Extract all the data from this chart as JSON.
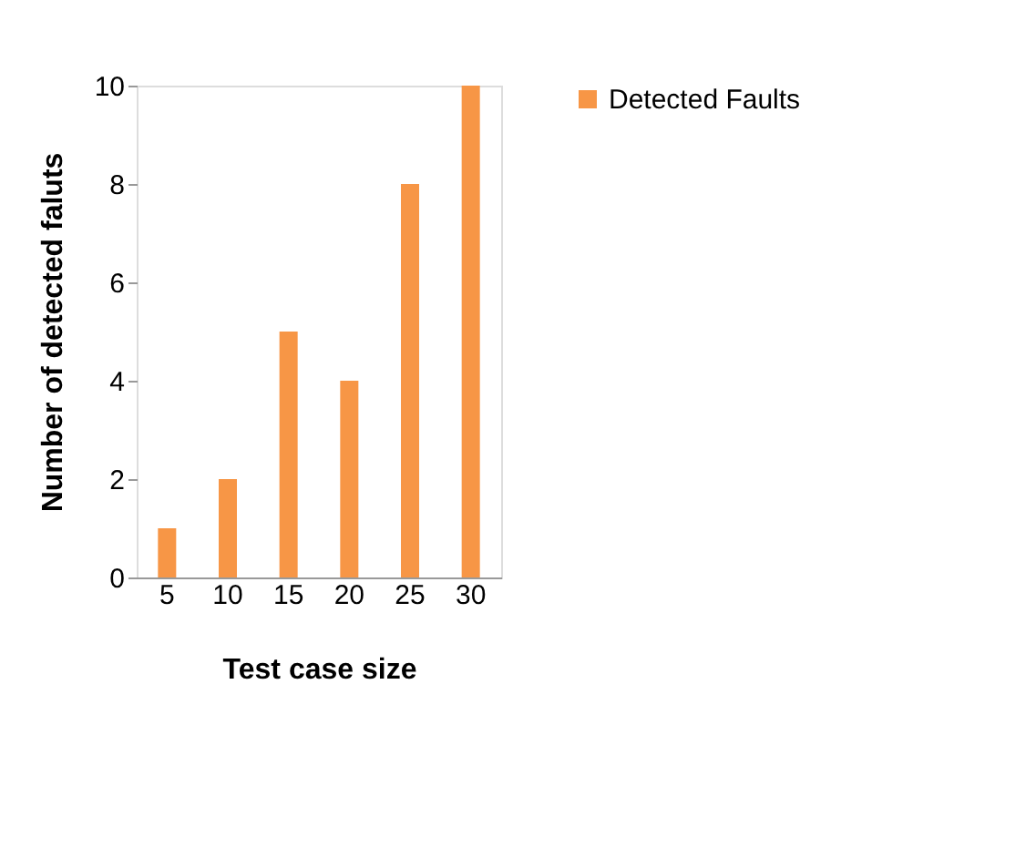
{
  "chart_data": {
    "type": "bar",
    "categories": [
      "5",
      "10",
      "15",
      "20",
      "25",
      "30"
    ],
    "series": [
      {
        "name": "Detected Faults",
        "color": "#f79646",
        "values": [
          1,
          2,
          5,
          4,
          8,
          10
        ]
      }
    ],
    "xlabel": "Test case size",
    "ylabel": "Number of detected  faluts",
    "ylim": [
      0,
      10
    ],
    "yticks": [
      0,
      2,
      4,
      6,
      8,
      10
    ],
    "grid": false,
    "legend": "right"
  }
}
